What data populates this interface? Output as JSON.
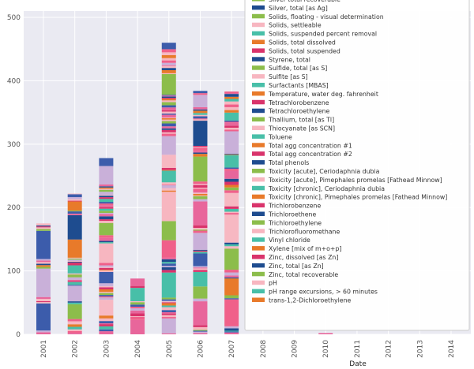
{
  "chart_data": {
    "type": "bar",
    "stacked": true,
    "xlabel": "Date",
    "ylabel": "",
    "ylim": [
      0,
      510
    ],
    "yticks": [
      0,
      100,
      200,
      300,
      400,
      500
    ],
    "grid": true,
    "legend_position": "top-right",
    "categories": [
      "2001",
      "2002",
      "2003",
      "2004",
      "2005",
      "2006",
      "2007",
      "2008",
      "2009",
      "2010",
      "2011",
      "2012",
      "2013",
      "2014"
    ],
    "totals": [
      175,
      222,
      278,
      88,
      460,
      384,
      383,
      0,
      0,
      2,
      0,
      0,
      0,
      0
    ],
    "palette": [
      "#e8669b",
      "#c9b0d9",
      "#f0608a",
      "#3c5cab",
      "#8cbd4b",
      "#f7b6c0",
      "#48bfa8",
      "#e87a2a",
      "#d9336b",
      "#1e4c8f",
      "#f7b8c2"
    ],
    "legend_entries": [
      "Silver total recoverable",
      "Silver, total [as Ag]",
      "Solids, floating - visual determination",
      "Solids, settleable",
      "Solids, suspended percent removal",
      "Solids, total dissolved",
      "Solids, total suspended",
      "Styrene, total",
      "Sulfide, total [as S]",
      "Sulfite [as S]",
      "Surfactants [MBAS]",
      "Temperature, water deg. fahrenheit",
      "Tetrachlorobenzene",
      "Tetrachloroethylene",
      "Thallium, total [as Tl]",
      "Thiocyanate [as SCN]",
      "Toluene",
      "Total agg concentration #1",
      "Total agg concentration #2",
      "Total phenols",
      "Toxicity [acute], Ceriodaphnia dubia",
      "Toxicity [acute], Pimephales promelas [Fathead Minnow]",
      "Toxicity [chronic], Ceriodaphnia dubia",
      "Toxicity [chronic], Pimephales promelas [Fathead Minnow]",
      "Trichlorobenzene",
      "Trichloroethene",
      "Trichloroethylene",
      "Trichlorofluoromethane",
      "Vinyl chloride",
      "Xylene [mix of m+o+p]",
      "Zinc, dissolved [as Zn]",
      "Zinc, total [as Zn]",
      "Zinc, total recoverable",
      "pH",
      "pH range excursions, > 60 minutes",
      "trans-1,2-Dichloroethylene"
    ],
    "legend_colors": [
      "#8cbd4b",
      "#1e4c8f",
      "#8cbd4b",
      "#f7b6c0",
      "#48bfa8",
      "#e87a2a",
      "#d9336b",
      "#1e4c8f",
      "#8cbd4b",
      "#f7b6c0",
      "#48bfa8",
      "#e87a2a",
      "#d9336b",
      "#1e4c8f",
      "#8cbd4b",
      "#f7b6c0",
      "#48bfa8",
      "#e87a2a",
      "#d9336b",
      "#1e4c8f",
      "#8cbd4b",
      "#f7b6c0",
      "#48bfa8",
      "#e87a2a",
      "#d9336b",
      "#1e4c8f",
      "#8cbd4b",
      "#f7b6c0",
      "#48bfa8",
      "#e87a2a",
      "#d9336b",
      "#1e4c8f",
      "#8cbd4b",
      "#f7b6c0",
      "#48bfa8",
      "#e87a2a"
    ]
  }
}
